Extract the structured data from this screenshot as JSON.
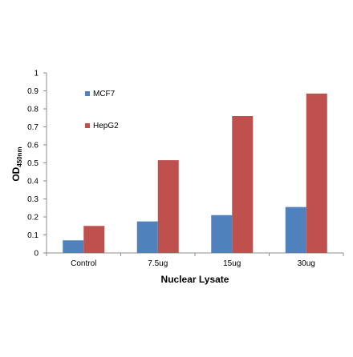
{
  "chart_data": {
    "type": "bar",
    "categories": [
      "Control",
      "7.5ug",
      "15ug",
      "30ug"
    ],
    "series": [
      {
        "name": "MCF7",
        "values": [
          0.07,
          0.175,
          0.21,
          0.255
        ],
        "color": "#4f81bd"
      },
      {
        "name": "HepG2",
        "values": [
          0.15,
          0.515,
          0.76,
          0.885
        ],
        "color": "#c0504d"
      }
    ],
    "xlabel": "Nuclear Lysate",
    "ylabel": {
      "main": "OD",
      "subscript": "450nm"
    },
    "ylim": [
      0,
      1
    ],
    "yticks": [
      "0",
      "0.1",
      "0.2",
      "0.3",
      "0.4",
      "0.5",
      "0.6",
      "0.7",
      "0.8",
      "0.9",
      "1"
    ],
    "grid": false,
    "legend_position": "upper-left inside plot"
  }
}
